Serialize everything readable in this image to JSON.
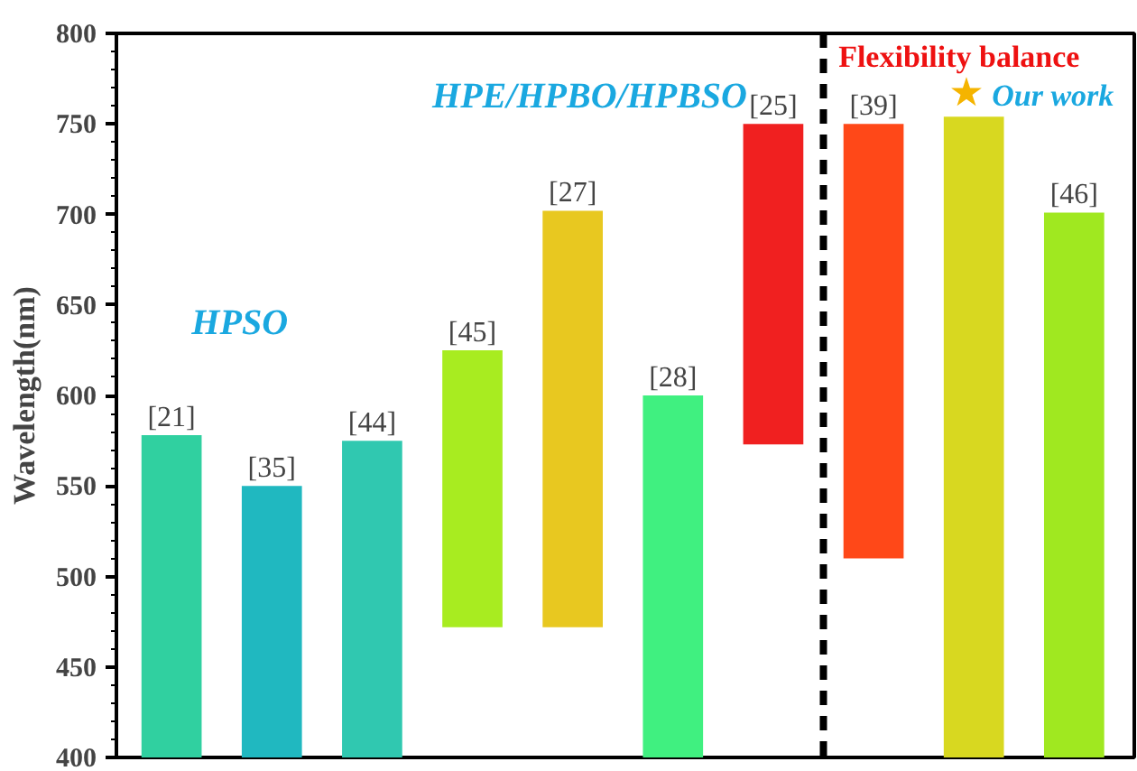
{
  "chart_data": {
    "type": "bar",
    "ylabel": "Wavelength(nm)",
    "categories": [
      "[21]",
      "[35]",
      "[44]",
      "[45]",
      "[27]",
      "[28]",
      "[25]",
      "[39]",
      null,
      "[46]"
    ],
    "base": [
      400,
      400,
      400,
      472,
      472,
      400,
      573,
      510,
      400,
      400
    ],
    "values": [
      178,
      150,
      175,
      153,
      230,
      200,
      177,
      240,
      354,
      301
    ],
    "colors": [
      "#30d0a0",
      "#20b8c0",
      "#30c8b0",
      "#a8ec20",
      "#e8c820",
      "#40f080",
      "#f02020",
      "#ff4818",
      "#d8d820",
      "#a0e820"
    ],
    "ylim": [
      400,
      800
    ],
    "yticks": [
      400,
      450,
      500,
      550,
      600,
      650,
      700,
      750,
      800
    ],
    "annotations": [
      "HPSO",
      "HPE/HPBO/HPBSO",
      "Flexibility balance",
      "★Our work"
    ],
    "tick_labels": "y",
    "grid": false
  }
}
